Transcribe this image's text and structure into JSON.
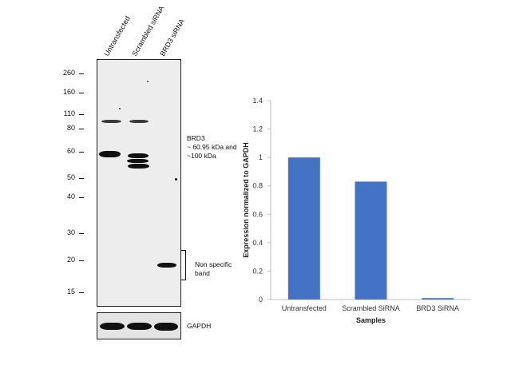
{
  "western_blot": {
    "lanes": [
      "Untransfected",
      "Scrambled siRNA",
      "BRD3 siRNA"
    ],
    "mw_markers": [
      "260",
      "160",
      "110",
      "80",
      "60",
      "50",
      "40",
      "30",
      "20",
      "15"
    ],
    "annotations": {
      "brd3_title": "BRD3",
      "brd3_line1": "~ 60.95 kDa and",
      "brd3_line2": "~100 kDa",
      "nonspecific_line1": "Non specific",
      "nonspecific_line2": "band",
      "loading_control": "GAPDH"
    }
  },
  "chart_data": {
    "type": "bar",
    "categories": [
      "Untransfected",
      "Scrambled SiRNA",
      "BRD3 SiRNA"
    ],
    "values": [
      1.0,
      0.83,
      0.01
    ],
    "xlabel": "Samples",
    "ylabel": "Expression normalized to GAPDH",
    "ylim": [
      0,
      1.4
    ],
    "yticks": [
      "0",
      "0.2",
      "0.4",
      "0.6",
      "0.8",
      "1",
      "1.2",
      "1.4"
    ],
    "bar_color": "#4472c4",
    "grid": false
  }
}
